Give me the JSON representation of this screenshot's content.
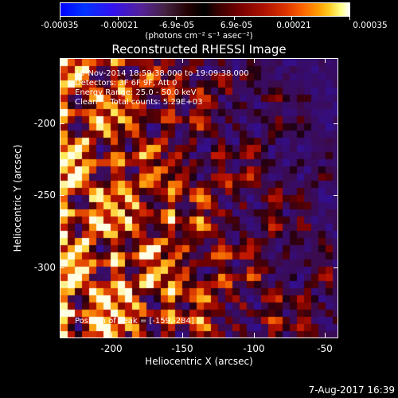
{
  "colorbar": {
    "tick_labels": [
      "-0.00035",
      "-0.00021",
      "-6.9e-05",
      "6.9e-05",
      "0.00021",
      "0.00035"
    ],
    "units_text": "(photons cm⁻² s⁻¹ asec⁻²)"
  },
  "plot": {
    "title": "Reconstructed RHESSI Image",
    "info_line1": "19-Nov-2014 18:59:38.000 to 19:09:38.000",
    "info_line2": "Detectors: 3F 6F 9F, Att 0",
    "info_line3": "Energy Range: 25.0 - 50.0 keV",
    "info_line4": "Clean     Total counts: 5.29E+03",
    "peak_text": "Position of Peak = [-159,-284]"
  },
  "axes": {
    "x_title": "Heliocentric X (arcsec)",
    "y_title": "Heliocentric Y (arcsec)",
    "x_tick_labels": [
      "-200",
      "-150",
      "-100",
      "-50"
    ],
    "y_tick_labels": [
      "-200",
      "-250",
      "-300"
    ]
  },
  "footer": {
    "date_stamp": "7-Aug-2017 16:39"
  },
  "chart_data": {
    "type": "heatmap",
    "title": "Reconstructed RHESSI Image",
    "xlabel": "Heliocentric X (arcsec)",
    "ylabel": "Heliocentric Y (arcsec)",
    "xlim": [
      -235,
      -40
    ],
    "ylim": [
      -342,
      -168
    ],
    "colorbar_range": [
      -0.00035,
      0.00035
    ],
    "colorbar_ticks": [
      -0.00035,
      -0.00021,
      -6.9e-05,
      6.9e-05,
      0.00021,
      0.00035
    ],
    "peak_position": [
      -159,
      -284
    ],
    "colormap": "RHESSI blue-black-red-yellow-white",
    "grid": false
  }
}
